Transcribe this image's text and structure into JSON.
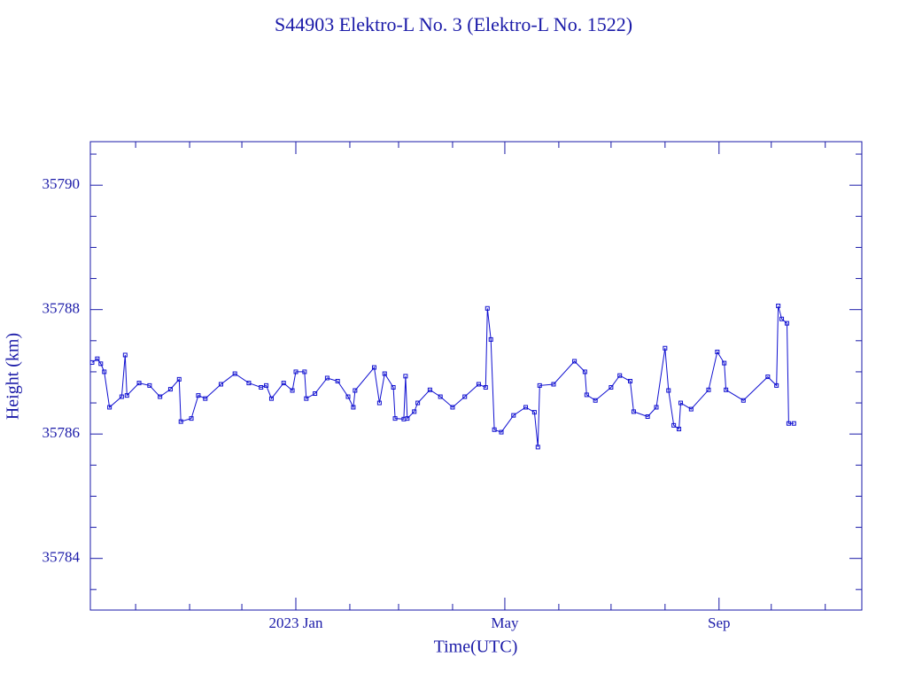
{
  "chart_data": {
    "type": "line",
    "title": "S44903 Elektro-L No. 3  (Elektro-L No. 1522)",
    "x_label": "Time(UTC)",
    "y_label": "Height (km)",
    "color": "#1010d0",
    "xlim": [
      "2022-09-05",
      "2023-11-22"
    ],
    "xticks": [
      {
        "value": "2023-01",
        "label": "2023 Jan"
      },
      {
        "value": "2023-05",
        "label": "May"
      },
      {
        "value": "2023-09",
        "label": "Sep"
      }
    ],
    "x_minor_ticks": [
      "2022-10",
      "2022-11",
      "2022-12",
      "2023-02",
      "2023-03",
      "2023-04",
      "2023-06",
      "2023-07",
      "2023-08",
      "2023-10",
      "2023-11"
    ],
    "ylim": [
      35783.17,
      35790.7
    ],
    "yticks": [
      35784,
      35786,
      35788,
      35790
    ],
    "y_minor_ticks": [
      35783.5,
      35784.5,
      35785,
      35785.5,
      35786.5,
      35787,
      35787.5,
      35788.5,
      35789,
      35789.5,
      35790.5
    ],
    "x": [
      "2022-09-06",
      "2022-09-09",
      "2022-09-11",
      "2022-09-13",
      "2022-09-16",
      "2022-09-23",
      "2022-09-25",
      "2022-09-26",
      "2022-10-03",
      "2022-10-09",
      "2022-10-15",
      "2022-10-21",
      "2022-10-26",
      "2022-10-27",
      "2022-11-02",
      "2022-11-06",
      "2022-11-10",
      "2022-11-19",
      "2022-11-27",
      "2022-12-05",
      "2022-12-12",
      "2022-12-15",
      "2022-12-18",
      "2022-12-25",
      "2022-12-30",
      "2023-01-01",
      "2023-01-06",
      "2023-01-07",
      "2023-01-12",
      "2023-01-19",
      "2023-01-25",
      "2023-01-31",
      "2023-02-03",
      "2023-02-04",
      "2023-02-15",
      "2023-02-18",
      "2023-02-21",
      "2023-02-26",
      "2023-02-27",
      "2023-03-04",
      "2023-03-05",
      "2023-03-06",
      "2023-03-10",
      "2023-03-12",
      "2023-03-19",
      "2023-03-25",
      "2023-04-01",
      "2023-04-08",
      "2023-04-16",
      "2023-04-20",
      "2023-04-21",
      "2023-04-23",
      "2023-04-25",
      "2023-04-29",
      "2023-05-06",
      "2023-05-13",
      "2023-05-18",
      "2023-05-20",
      "2023-05-21",
      "2023-05-29",
      "2023-06-10",
      "2023-06-16",
      "2023-06-17",
      "2023-06-22",
      "2023-07-01",
      "2023-07-06",
      "2023-07-12",
      "2023-07-14",
      "2023-07-22",
      "2023-07-27",
      "2023-08-01",
      "2023-08-03",
      "2023-08-06",
      "2023-08-09",
      "2023-08-10",
      "2023-08-16",
      "2023-08-26",
      "2023-08-31",
      "2023-09-04",
      "2023-09-05",
      "2023-09-15",
      "2023-09-29",
      "2023-10-04",
      "2023-10-05",
      "2023-10-07",
      "2023-10-10",
      "2023-10-11",
      "2023-10-14"
    ],
    "values": [
      35787.15,
      35787.21,
      35787.13,
      35787.0,
      35786.43,
      35786.6,
      35787.27,
      35786.62,
      35786.82,
      35786.78,
      35786.6,
      35786.72,
      35786.88,
      35786.2,
      35786.25,
      35786.62,
      35786.57,
      35786.8,
      35786.97,
      35786.82,
      35786.75,
      35786.78,
      35786.57,
      35786.82,
      35786.7,
      35787.0,
      35787.0,
      35786.57,
      35786.65,
      35786.9,
      35786.85,
      35786.6,
      35786.43,
      35786.7,
      35787.07,
      35786.5,
      35786.97,
      35786.75,
      35786.25,
      35786.24,
      35786.93,
      35786.25,
      35786.36,
      35786.5,
      35786.71,
      35786.6,
      35786.43,
      35786.6,
      35786.8,
      35786.75,
      35788.02,
      35787.52,
      35786.07,
      35786.03,
      35786.3,
      35786.43,
      35786.35,
      35785.79,
      35786.78,
      35786.8,
      35787.17,
      35787.0,
      35786.63,
      35786.54,
      35786.75,
      35786.94,
      35786.85,
      35786.36,
      35786.28,
      35786.43,
      35787.38,
      35786.7,
      35786.14,
      35786.08,
      35786.5,
      35786.4,
      35786.71,
      35787.32,
      35787.14,
      35786.71,
      35786.54,
      35786.92,
      35786.78,
      35788.06,
      35787.85,
      35787.78,
      35786.17,
      35786.17
    ]
  }
}
